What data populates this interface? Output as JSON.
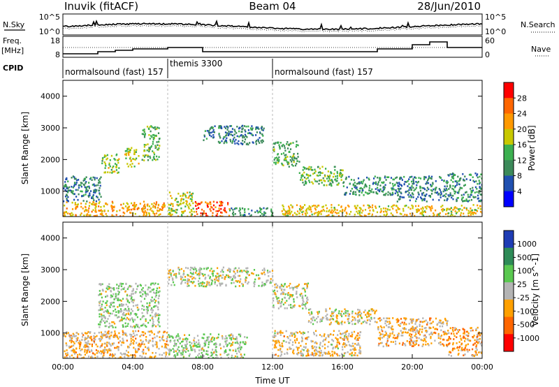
{
  "header": {
    "station": "Inuvik (fitACF)",
    "beam": "Beam 04",
    "date": "28/Jun/2010"
  },
  "panel_labels": {
    "nsky": "N.Sky",
    "nsearch": "N.Search",
    "freq_line1": "Freq.",
    "freq_line2": "[MHz]",
    "nave": "Nave",
    "cpid": "CPID"
  },
  "noise_axis": {
    "left_top": "10^5",
    "left_bottom": "10^0",
    "right_top": "10^5",
    "right_bottom": "10^0"
  },
  "freq_axis": {
    "left_top": "18",
    "left_bottom": "8",
    "right_top": "60",
    "right_bottom": "0"
  },
  "cpid_segments": [
    {
      "label": "normalsound (fast) 157",
      "start_hour": 0,
      "end_hour": 6
    },
    {
      "label": "themis 3300",
      "start_hour": 6,
      "end_hour": 12
    },
    {
      "label": "normalsound (fast) 157",
      "start_hour": 12,
      "end_hour": 24
    }
  ],
  "colors": {
    "power": [
      "#0000ff",
      "#2050b0",
      "#3c8a5a",
      "#3cb050",
      "#c8c800",
      "#ff9900",
      "#ff6600",
      "#ff0000"
    ],
    "velocity": [
      "#ff0000",
      "#ff6600",
      "#ffa000",
      "#b4b4b4",
      "#5ac850",
      "#2e8b57",
      "#1e3cb4"
    ]
  },
  "chart_data": [
    {
      "type": "heatmap",
      "title": "Power",
      "xlabel": "",
      "ylabel": "Slant Range [km]",
      "ylim": [
        200,
        4500
      ],
      "xlim": [
        0,
        24
      ],
      "yticks": [
        "1000",
        "2000",
        "3000",
        "4000"
      ],
      "colorbar_label": "Power [dB]",
      "colorbar_ticks": [
        "4",
        "8",
        "12",
        "16",
        "20",
        "24",
        "28"
      ],
      "clim": [
        0,
        32
      ],
      "regions": [
        {
          "x": [
            0,
            5.8
          ],
          "y": [
            200,
            700
          ],
          "value": 22
        },
        {
          "x": [
            0,
            2.2
          ],
          "y": [
            700,
            1500
          ],
          "value": 8
        },
        {
          "x": [
            2.2,
            3.2
          ],
          "y": [
            1600,
            2200
          ],
          "value": 16
        },
        {
          "x": [
            3.5,
            4.3
          ],
          "y": [
            1800,
            2400
          ],
          "value": 18
        },
        {
          "x": [
            4.5,
            5.5
          ],
          "y": [
            2000,
            3100
          ],
          "value": 14
        },
        {
          "x": [
            6,
            7.5
          ],
          "y": [
            200,
            1000
          ],
          "value": 18
        },
        {
          "x": [
            7.5,
            9.5
          ],
          "y": [
            200,
            700
          ],
          "value": 28
        },
        {
          "x": [
            9.5,
            12
          ],
          "y": [
            200,
            500
          ],
          "value": 10
        },
        {
          "x": [
            8,
            11.5
          ],
          "y": [
            2500,
            3100
          ],
          "value": 8
        },
        {
          "x": [
            12,
            13.5
          ],
          "y": [
            1800,
            2600
          ],
          "value": 12
        },
        {
          "x": [
            13.5,
            16
          ],
          "y": [
            1200,
            1800
          ],
          "value": 14
        },
        {
          "x": [
            16,
            19
          ],
          "y": [
            900,
            1500
          ],
          "value": 10
        },
        {
          "x": [
            12.5,
            24
          ],
          "y": [
            200,
            600
          ],
          "value": 20
        },
        {
          "x": [
            19,
            22
          ],
          "y": [
            700,
            1500
          ],
          "value": 8
        },
        {
          "x": [
            22,
            24
          ],
          "y": [
            700,
            1600
          ],
          "value": 10
        }
      ]
    },
    {
      "type": "heatmap",
      "title": "Velocity",
      "xlabel": "Time UT",
      "ylabel": "Slant Range [km]",
      "ylim": [
        200,
        4500
      ],
      "xlim": [
        0,
        24
      ],
      "xticks": [
        "00:00",
        "04:00",
        "08:00",
        "12:00",
        "16:00",
        "20:00",
        "00:00"
      ],
      "yticks": [
        "1000",
        "2000",
        "3000",
        "4000"
      ],
      "colorbar_label": "Velocity [m s^-1]",
      "colorbar_ticks": [
        "1000",
        "500",
        "100",
        "25",
        "-25",
        "-100",
        "-500",
        "-1000"
      ],
      "clim": [
        -1200,
        1200
      ],
      "regions": [
        {
          "x": [
            0,
            6
          ],
          "y": [
            200,
            1100
          ],
          "value": -300
        },
        {
          "x": [
            2,
            5.5
          ],
          "y": [
            1200,
            2600
          ],
          "value": 150
        },
        {
          "x": [
            6,
            10.5
          ],
          "y": [
            200,
            1000
          ],
          "value": 150
        },
        {
          "x": [
            6,
            12
          ],
          "y": [
            2500,
            3100
          ],
          "value": 0
        },
        {
          "x": [
            12,
            14
          ],
          "y": [
            1800,
            2600
          ],
          "value": 0
        },
        {
          "x": [
            14,
            18
          ],
          "y": [
            1300,
            1800
          ],
          "value": 0
        },
        {
          "x": [
            18,
            22
          ],
          "y": [
            600,
            1500
          ],
          "value": -300
        },
        {
          "x": [
            22,
            24
          ],
          "y": [
            300,
            1200
          ],
          "value": -500
        },
        {
          "x": [
            12,
            17
          ],
          "y": [
            300,
            1100
          ],
          "value": -200
        }
      ]
    }
  ]
}
